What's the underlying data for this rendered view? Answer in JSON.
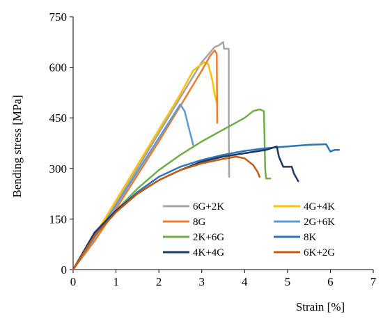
{
  "chart_data": {
    "type": "line",
    "title": "",
    "xlabel": "Strain [%]",
    "ylabel": "Bending stress [MPa]",
    "xlim": [
      0,
      7
    ],
    "ylim": [
      0,
      750
    ],
    "xticks": [
      0,
      1,
      2,
      3,
      4,
      5,
      6,
      7
    ],
    "yticks": [
      0,
      150,
      300,
      450,
      600,
      750
    ],
    "grid": false,
    "legend_position": "bottom-right",
    "series": [
      {
        "name": "6G+2K",
        "color": "#a5a5a5",
        "x": [
          0,
          0.5,
          1,
          1.5,
          2,
          2.5,
          3,
          3.2,
          3.3,
          3.4,
          3.5,
          3.52,
          3.63,
          3.63,
          3.64
        ],
        "y": [
          0,
          95,
          195,
          300,
          405,
          510,
          615,
          645,
          660,
          665,
          675,
          655,
          655,
          400,
          275
        ]
      },
      {
        "name": "4G+4K",
        "color": "#ffc000",
        "x": [
          0,
          0.5,
          1,
          1.5,
          2,
          2.5,
          2.8,
          2.95,
          3.05,
          3.15,
          3.25,
          3.3,
          3.35
        ],
        "y": [
          0,
          100,
          205,
          310,
          415,
          520,
          590,
          605,
          615,
          610,
          560,
          520,
          495
        ]
      },
      {
        "name": "8G",
        "color": "#ed7d31",
        "x": [
          0,
          0.5,
          1,
          1.5,
          2,
          2.5,
          3,
          3.2,
          3.3,
          3.35,
          3.36
        ],
        "y": [
          0,
          85,
          180,
          280,
          380,
          485,
          590,
          635,
          650,
          640,
          435
        ]
      },
      {
        "name": "2G+6K",
        "color": "#5b9bd5",
        "x": [
          0,
          0.5,
          1,
          1.5,
          2,
          2.3,
          2.5,
          2.6,
          2.7,
          2.8
        ],
        "y": [
          0,
          95,
          190,
          290,
          390,
          450,
          490,
          470,
          420,
          370
        ]
      },
      {
        "name": "2K+6G",
        "color": "#70ad47",
        "x": [
          0,
          0.5,
          1,
          1.5,
          2,
          2.5,
          3,
          3.5,
          4,
          4.2,
          4.35,
          4.45,
          4.48,
          4.5,
          4.6
        ],
        "y": [
          0,
          100,
          175,
          240,
          295,
          340,
          380,
          415,
          450,
          470,
          475,
          470,
          300,
          270,
          270
        ]
      },
      {
        "name": "8K",
        "color": "#2e75b6",
        "x": [
          0,
          0.5,
          1,
          1.5,
          2,
          2.5,
          3,
          3.5,
          4,
          4.5,
          5,
          5.5,
          5.9,
          6.0,
          6.1,
          6.2
        ],
        "y": [
          0,
          105,
          175,
          230,
          275,
          305,
          325,
          340,
          352,
          360,
          365,
          370,
          372,
          350,
          355,
          355
        ]
      },
      {
        "name": "4K+4G",
        "color": "#1f3864",
        "x": [
          0,
          0.5,
          1,
          1.5,
          2,
          2.5,
          3,
          3.5,
          4,
          4.5,
          4.75,
          4.8,
          4.9,
          5.1,
          5.15,
          5.25
        ],
        "y": [
          0,
          110,
          175,
          225,
          265,
          295,
          320,
          335,
          345,
          355,
          365,
          335,
          305,
          305,
          285,
          262
        ]
      },
      {
        "name": "6K+2G",
        "color": "#c55a11",
        "x": [
          0,
          0.5,
          1,
          1.5,
          2,
          2.5,
          3,
          3.5,
          3.8,
          4.0,
          4.2,
          4.3,
          4.35
        ],
        "y": [
          0,
          100,
          170,
          225,
          265,
          295,
          315,
          328,
          335,
          330,
          310,
          290,
          275
        ]
      }
    ]
  }
}
